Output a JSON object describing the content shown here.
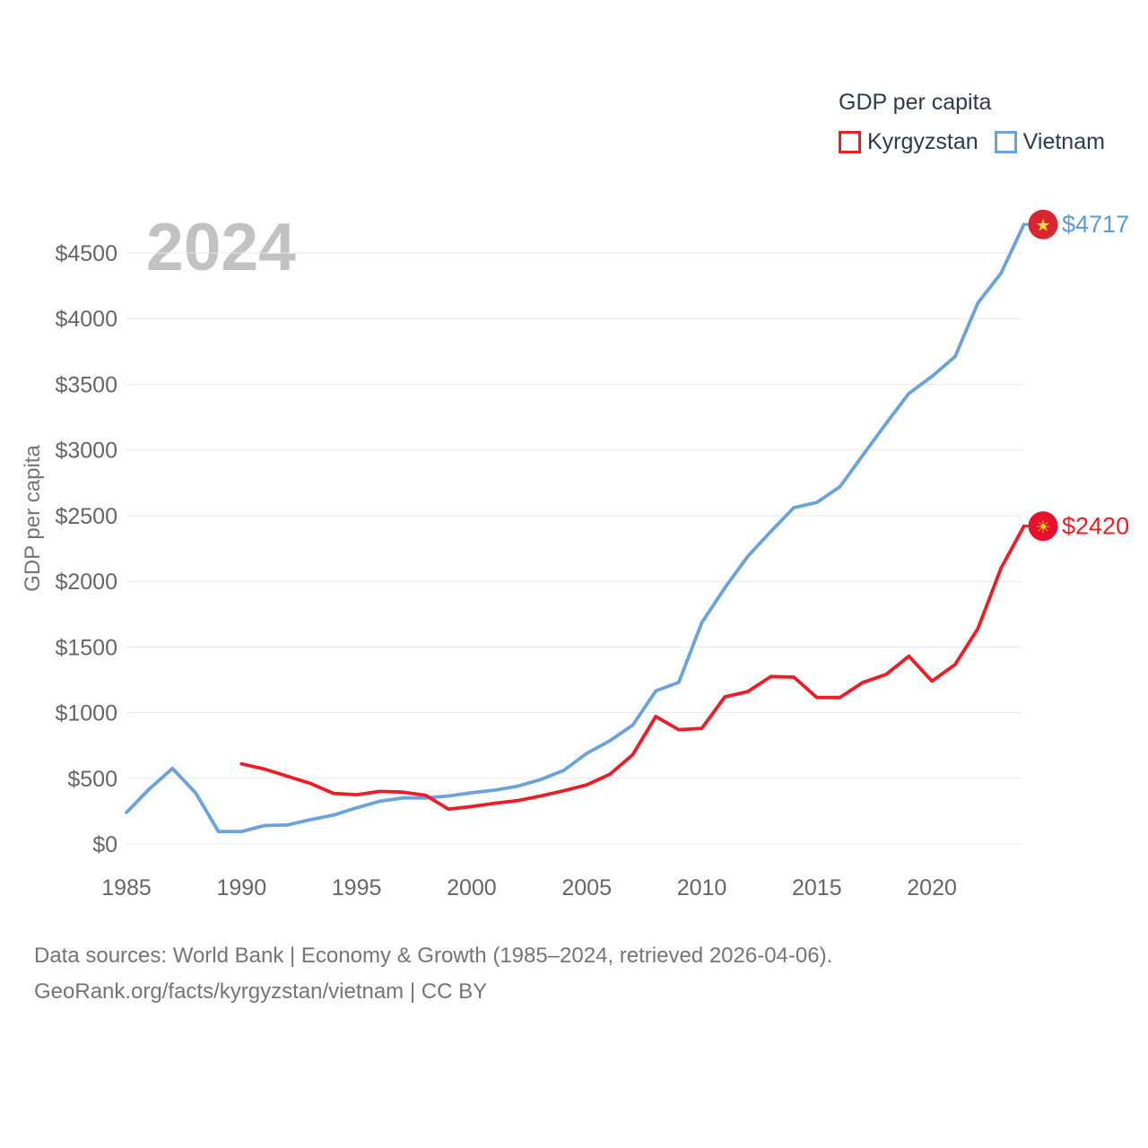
{
  "legend": {
    "title": "GDP per capita",
    "items": [
      {
        "label": "Kyrgyzstan",
        "color": "#ee1c25"
      },
      {
        "label": "Vietnam",
        "color": "#6aa2de"
      }
    ]
  },
  "watermark": {
    "text": "2024",
    "color": "#c2c2c2"
  },
  "y_axis": {
    "title": "GDP per capita",
    "tick_labels": [
      "$0",
      "$500",
      "$1000",
      "$1500",
      "$2000",
      "$2500",
      "$3000",
      "$3500",
      "$4000",
      "$4500"
    ]
  },
  "x_axis": {
    "tick_labels": [
      "1985",
      "1990",
      "1995",
      "2000",
      "2005",
      "2010",
      "2015",
      "2020"
    ]
  },
  "footer": {
    "line1": "Data sources: World Bank | Economy & Growth (1985–2024, retrieved 2026-04-06).",
    "line2": "GeoRank.org/facts/kyrgyzstan/vietnam | CC BY"
  },
  "chart_data": {
    "type": "line",
    "title": "GDP per capita",
    "ylabel": "GDP per capita",
    "ylim": [
      0,
      4750
    ],
    "yticks": [
      0,
      500,
      1000,
      1500,
      2000,
      2500,
      3000,
      3500,
      4000,
      4500
    ],
    "xticks": [
      1985,
      1990,
      1995,
      2000,
      2005,
      2010,
      2015,
      2020
    ],
    "xlim": [
      1985,
      2024
    ],
    "grid": "horizontal",
    "legend_position": "top-right",
    "series": [
      {
        "name": "Kyrgyzstan",
        "color": "#ee1c25",
        "start_year": 1990,
        "values": [
          610,
          570,
          515,
          460,
          385,
          375,
          400,
          395,
          370,
          265,
          285,
          310,
          330,
          365,
          405,
          450,
          530,
          680,
          970,
          870,
          880,
          1120,
          1160,
          1275,
          1270,
          1115,
          1115,
          1230,
          1290,
          1430,
          1240,
          1365,
          1640,
          2100,
          2420
        ],
        "end_marker": {
          "value_label": "$2420",
          "label_color": "#ee1c25",
          "flag_bg": "#e8112d",
          "flag_glyph": "☀",
          "glyph_color": "#ffdf00"
        }
      },
      {
        "name": "Vietnam",
        "color": "#6aa2de",
        "start_year": 1985,
        "values": [
          240,
          420,
          575,
          390,
          95,
          95,
          140,
          145,
          185,
          220,
          275,
          325,
          350,
          350,
          365,
          390,
          410,
          440,
          490,
          560,
          690,
          785,
          905,
          1165,
          1230,
          1685,
          1950,
          2190,
          2380,
          2560,
          2600,
          2720,
          2960,
          3200,
          3430,
          3560,
          3710,
          4120,
          4345,
          4717
        ],
        "end_marker": {
          "value_label": "$4717",
          "label_color": "#5b9bd5",
          "flag_bg": "#da2532",
          "flag_glyph": "★",
          "glyph_color": "#ffd839"
        }
      }
    ]
  }
}
